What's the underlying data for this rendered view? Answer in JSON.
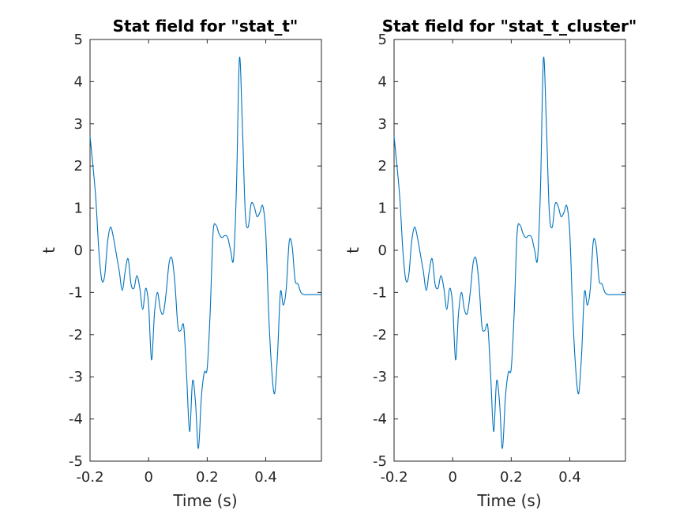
{
  "chart_data": [
    {
      "type": "line",
      "title": "Stat field for \"stat_t\"",
      "xlabel": "Time (s)",
      "ylabel": "t",
      "xlim": [
        -0.2,
        0.59
      ],
      "ylim": [
        -5,
        5
      ],
      "xticks": [
        -0.2,
        0,
        0.2,
        0.4
      ],
      "xtick_labels": [
        "-0.2",
        "0",
        "0.2",
        "0.4"
      ],
      "yticks": [
        -5,
        -4,
        -3,
        -2,
        -1,
        0,
        1,
        2,
        3,
        4,
        5
      ],
      "ytick_labels": [
        "-5",
        "-4",
        "-3",
        "-2",
        "-1",
        "0",
        "1",
        "2",
        "3",
        "4",
        "5"
      ],
      "grid": false,
      "line_color": "#0072BD",
      "series": [
        {
          "x": [
            -0.2,
            -0.19,
            -0.18,
            -0.17,
            -0.16,
            -0.15,
            -0.14,
            -0.13,
            -0.12,
            -0.11,
            -0.1,
            -0.09,
            -0.08,
            -0.07,
            -0.06,
            -0.05,
            -0.04,
            -0.03,
            -0.02,
            -0.01,
            0,
            0.01,
            0.02,
            0.03,
            0.04,
            0.05,
            0.06,
            0.07,
            0.08,
            0.09,
            0.1,
            0.11,
            0.12,
            0.13,
            0.14,
            0.15,
            0.16,
            0.17,
            0.18,
            0.19,
            0.2,
            0.21,
            0.22,
            0.23,
            0.24,
            0.25,
            0.26,
            0.27,
            0.28,
            0.29,
            0.3,
            0.31,
            0.32,
            0.33,
            0.34,
            0.35,
            0.36,
            0.37,
            0.38,
            0.39,
            0.4,
            0.41,
            0.42,
            0.43,
            0.44,
            0.45,
            0.46,
            0.47,
            0.48,
            0.49,
            0.5,
            0.51,
            0.52,
            0.53,
            0.54,
            0.55,
            0.56,
            0.57,
            0.58,
            0.59
          ],
          "y": [
            2.7,
            2.0,
            1.2,
            0.0,
            -0.7,
            -0.6,
            0.2,
            0.55,
            0.3,
            -0.1,
            -0.5,
            -0.95,
            -0.5,
            -0.2,
            -0.8,
            -0.9,
            -0.6,
            -0.9,
            -1.4,
            -0.9,
            -1.3,
            -2.6,
            -1.5,
            -1.0,
            -1.4,
            -1.5,
            -1.0,
            -0.3,
            -0.2,
            -0.8,
            -1.8,
            -1.9,
            -1.8,
            -3.0,
            -4.3,
            -3.1,
            -3.6,
            -4.7,
            -3.5,
            -2.9,
            -2.8,
            -1.5,
            0.4,
            0.6,
            0.4,
            0.3,
            0.35,
            0.3,
            0.0,
            -0.2,
            1.5,
            4.55,
            3.0,
            0.9,
            0.55,
            1.1,
            1.05,
            0.8,
            0.9,
            1.05,
            0.4,
            -1.5,
            -2.8,
            -3.4,
            -2.5,
            -1.0,
            -1.3,
            -0.9,
            0.2,
            0.1,
            -0.7,
            -0.8,
            -1.0,
            -1.05,
            -1.05,
            -1.05,
            -1.05,
            -1.05,
            -1.05,
            -1.05
          ]
        }
      ]
    },
    {
      "type": "line",
      "title": "Stat field for \"stat_t_cluster\"",
      "xlabel": "Time (s)",
      "ylabel": "t",
      "xlim": [
        -0.2,
        0.59
      ],
      "ylim": [
        -5,
        5
      ],
      "xticks": [
        -0.2,
        0,
        0.2,
        0.4
      ],
      "xtick_labels": [
        "-0.2",
        "0",
        "0.2",
        "0.4"
      ],
      "yticks": [
        -5,
        -4,
        -3,
        -2,
        -1,
        0,
        1,
        2,
        3,
        4,
        5
      ],
      "ytick_labels": [
        "-5",
        "-4",
        "-3",
        "-2",
        "-1",
        "0",
        "1",
        "2",
        "3",
        "4",
        "5"
      ],
      "grid": false,
      "line_color": "#0072BD",
      "series": [
        {
          "x": [
            -0.2,
            -0.19,
            -0.18,
            -0.17,
            -0.16,
            -0.15,
            -0.14,
            -0.13,
            -0.12,
            -0.11,
            -0.1,
            -0.09,
            -0.08,
            -0.07,
            -0.06,
            -0.05,
            -0.04,
            -0.03,
            -0.02,
            -0.01,
            0,
            0.01,
            0.02,
            0.03,
            0.04,
            0.05,
            0.06,
            0.07,
            0.08,
            0.09,
            0.1,
            0.11,
            0.12,
            0.13,
            0.14,
            0.15,
            0.16,
            0.17,
            0.18,
            0.19,
            0.2,
            0.21,
            0.22,
            0.23,
            0.24,
            0.25,
            0.26,
            0.27,
            0.28,
            0.29,
            0.3,
            0.31,
            0.32,
            0.33,
            0.34,
            0.35,
            0.36,
            0.37,
            0.38,
            0.39,
            0.4,
            0.41,
            0.42,
            0.43,
            0.44,
            0.45,
            0.46,
            0.47,
            0.48,
            0.49,
            0.5,
            0.51,
            0.52,
            0.53,
            0.54,
            0.55,
            0.56,
            0.57,
            0.58,
            0.59
          ],
          "y": [
            2.7,
            2.0,
            1.2,
            0.0,
            -0.7,
            -0.6,
            0.2,
            0.55,
            0.3,
            -0.1,
            -0.5,
            -0.95,
            -0.5,
            -0.2,
            -0.8,
            -0.9,
            -0.6,
            -0.9,
            -1.4,
            -0.9,
            -1.3,
            -2.6,
            -1.5,
            -1.0,
            -1.4,
            -1.5,
            -1.0,
            -0.3,
            -0.2,
            -0.8,
            -1.8,
            -1.9,
            -1.8,
            -3.0,
            -4.3,
            -3.1,
            -3.6,
            -4.7,
            -3.5,
            -2.9,
            -2.8,
            -1.5,
            0.4,
            0.6,
            0.4,
            0.3,
            0.35,
            0.3,
            0.0,
            -0.2,
            1.5,
            4.55,
            3.0,
            0.9,
            0.55,
            1.1,
            1.05,
            0.8,
            0.9,
            1.05,
            0.4,
            -1.5,
            -2.8,
            -3.4,
            -2.5,
            -1.0,
            -1.3,
            -0.9,
            0.2,
            0.1,
            -0.7,
            -0.8,
            -1.0,
            -1.05,
            -1.05,
            -1.05,
            -1.05,
            -1.05,
            -1.05,
            -1.05
          ]
        }
      ]
    }
  ]
}
